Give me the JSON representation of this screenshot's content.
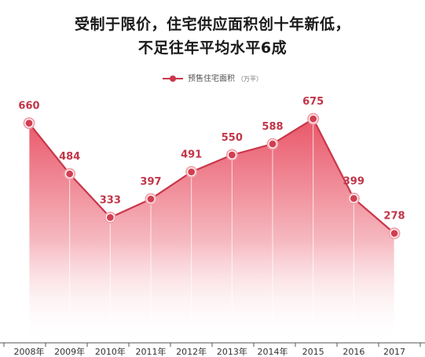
{
  "title_line1": "受制于限价，住宅供应面积创十年新低，",
  "title_line2": "不足往年平均水平6成",
  "legend": {
    "label": "预售住宅面积",
    "unit": "（万平）"
  },
  "colors": {
    "line": "#c9374a",
    "marker_fill": "#d23e50",
    "marker_ring": "#f2a2ab",
    "area_top": "#e5394e",
    "area_bottom": "#ffffff",
    "label": "#c13548",
    "axis": "#555555"
  },
  "chart_data": {
    "type": "area",
    "categories": [
      "2008年",
      "2009年",
      "2010年",
      "2011年",
      "2012年",
      "2013年",
      "2014年",
      "2015",
      "2016",
      "2017"
    ],
    "series": [
      {
        "name": "预售住宅面积",
        "values": [
          660,
          484,
          333,
          397,
          491,
          550,
          588,
          675,
          399,
          278
        ],
        "labels": [
          "660",
          "484",
          "333",
          "397",
          "491",
          "550",
          "588",
          "675",
          "399",
          "278"
        ]
      }
    ],
    "ylim": [
      0,
      900
    ],
    "grid": false,
    "legend_position": "top-center",
    "title": "受制于限价，住宅供应面积创十年新低，不足往年平均水平6成",
    "xlabel": "",
    "ylabel": ""
  }
}
